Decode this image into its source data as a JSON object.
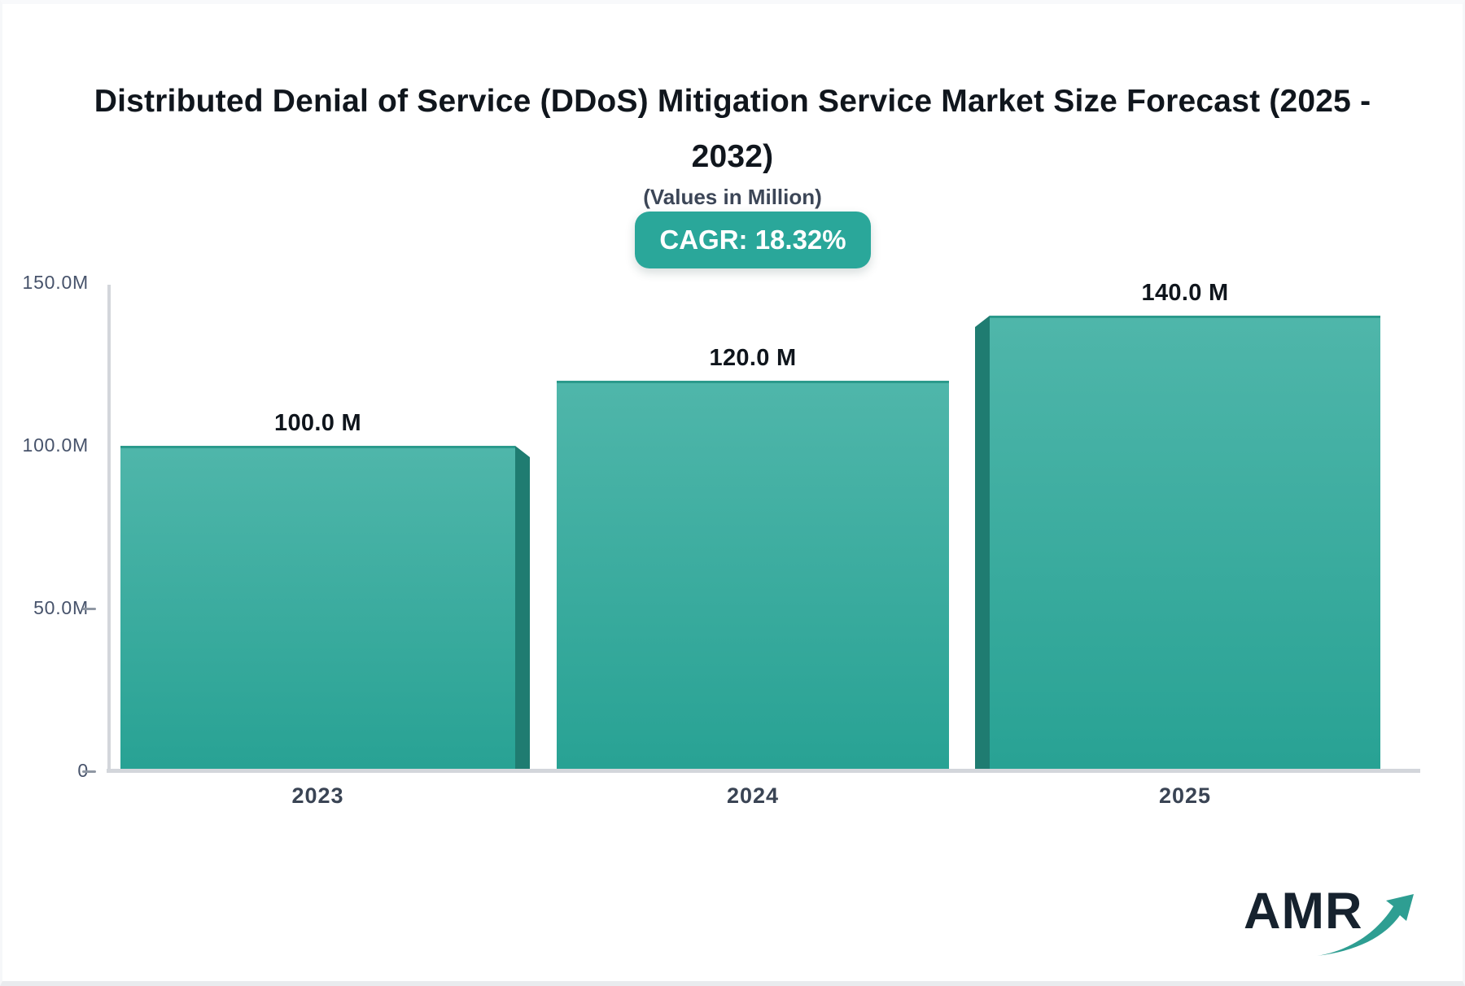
{
  "page": {
    "logo_text": "AMR"
  },
  "chart_data": {
    "type": "bar",
    "title": "Distributed Denial of Service (DDoS) Mitigation Service Market Size Forecast (2025 - 2032)",
    "subtitle": "(Values in Million)",
    "badge_label": "CAGR: 18.32%",
    "categories": [
      "2023",
      "2024",
      "2025"
    ],
    "values": [
      100,
      120,
      140
    ],
    "value_labels": [
      "100.0 M",
      "120.0 M",
      "140.0 M"
    ],
    "unit": "Million",
    "y_axis": {
      "range": [
        0,
        150
      ],
      "ticks": [
        {
          "label": "150.0M",
          "value": 150,
          "dash": false
        },
        {
          "label": "100.0M",
          "value": 100,
          "dash": false
        },
        {
          "label": "50.0M",
          "value": 50,
          "dash": true
        },
        {
          "label": "0",
          "value": 0,
          "dash": true
        }
      ]
    },
    "grid": "off",
    "legend": "none",
    "colors": {
      "bar_gradient_top": "#4fb6aa",
      "bar_gradient_bottom": "#28a294",
      "bar_side_face": "#1f7c71",
      "bar_top_edge": "#2b9a8c",
      "badge_background": "#2aa79a",
      "badge_text": "#ffffff",
      "title_text": "#10161d",
      "subtitle_text": "#3c4657",
      "axis_line": "#d3d6db",
      "y_tick_text": "#47536b",
      "x_tick_text": "#3a4454",
      "value_label_text": "#0f151c",
      "logo_text": "#16222e",
      "logo_arrow": "#2e9e92"
    }
  }
}
